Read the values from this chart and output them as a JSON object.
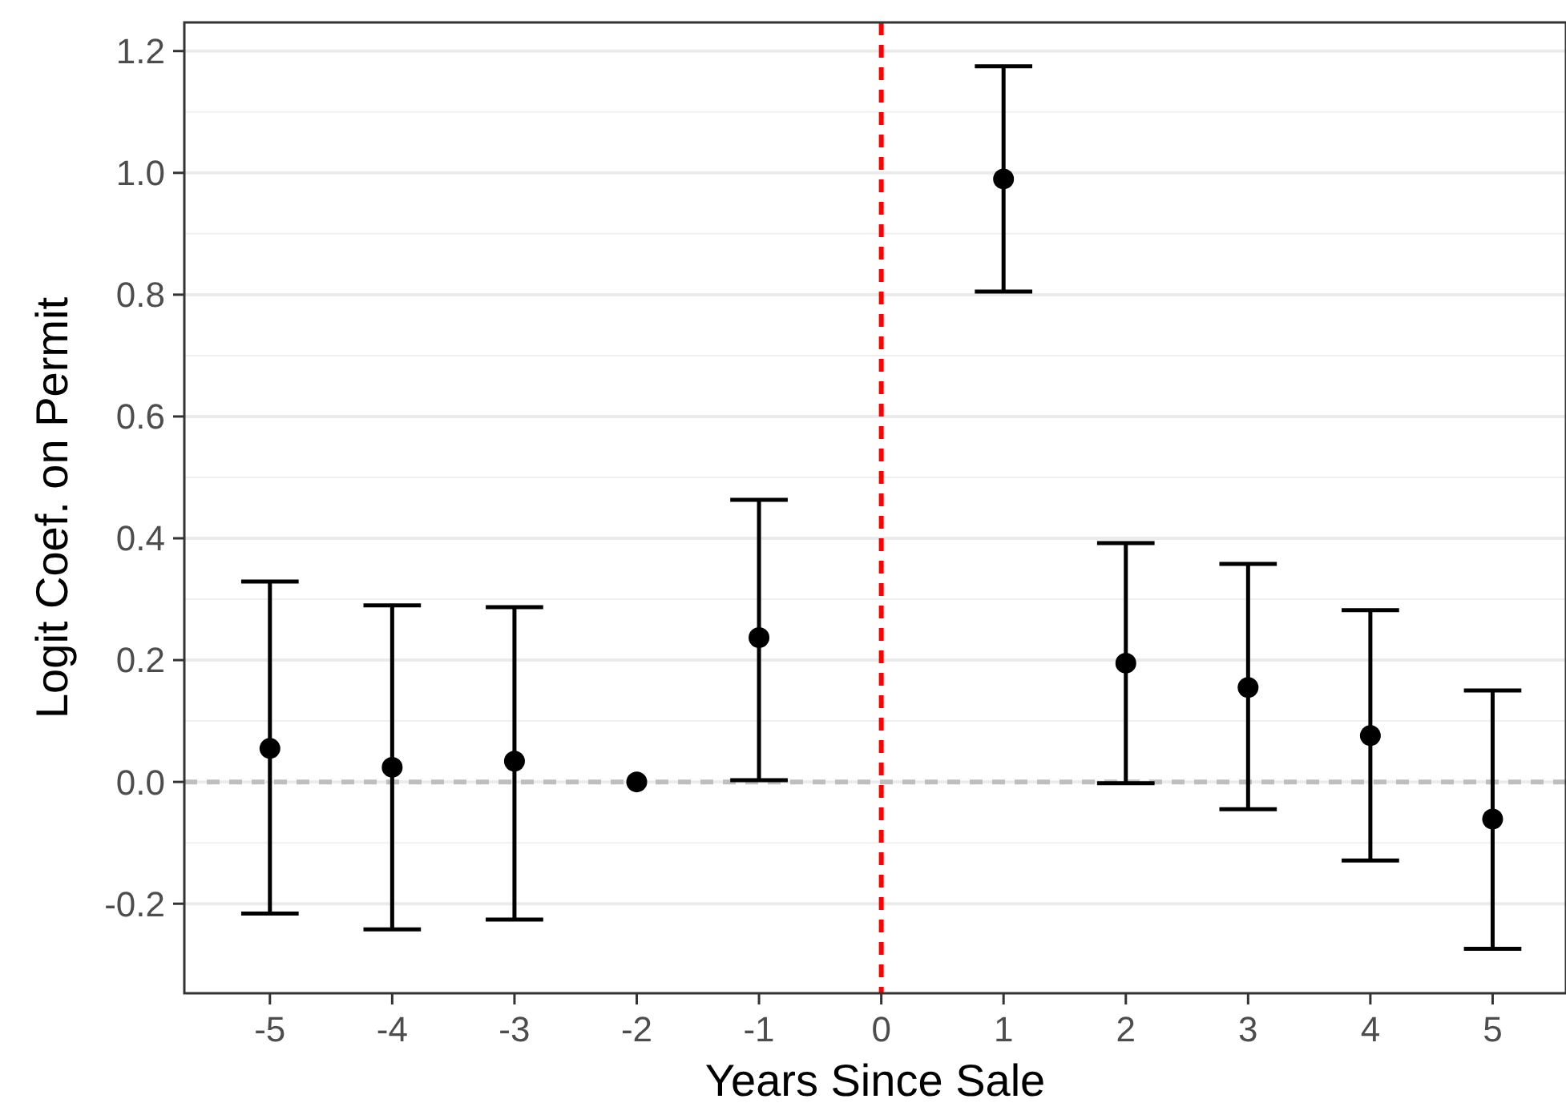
{
  "chart_data": {
    "type": "scatter",
    "xlabel": "Years Since Sale",
    "ylabel": "Logit Coef. on Permit",
    "x": [
      -5,
      -4,
      -3,
      -2,
      -1,
      1,
      2,
      3,
      4,
      5
    ],
    "values": [
      0.055,
      0.024,
      0.034,
      0,
      0.237,
      0.99,
      0.195,
      0.155,
      0.076,
      -0.061
    ],
    "errors": [
      [
        -0.216,
        0.329
      ],
      [
        -0.242,
        0.29
      ],
      [
        -0.226,
        0.287
      ],
      null,
      [
        0.003,
        0.463
      ],
      [
        0.805,
        1.175
      ],
      [
        -0.002,
        0.392
      ],
      [
        -0.045,
        0.358
      ],
      [
        -0.129,
        0.282
      ],
      [
        -0.274,
        0.15
      ]
    ],
    "color": "#000000",
    "marker": "circle",
    "xlim": [
      -5.7,
      5.6
    ],
    "xticks": [
      -5,
      -4,
      -3,
      -2,
      -1,
      0,
      1,
      2,
      3,
      4,
      5
    ],
    "ylim": [
      -0.347,
      1.247
    ],
    "yticks": [
      {
        "value": -0.2,
        "label": "-0.2"
      },
      {
        "value": 0,
        "label": "0.0"
      },
      {
        "value": 0.2,
        "label": "0.2"
      },
      {
        "value": 0.4,
        "label": "0.4"
      },
      {
        "value": 0.6,
        "label": "0.6"
      },
      {
        "value": 0.8,
        "label": "0.8"
      },
      {
        "value": 1,
        "label": "1.0"
      },
      {
        "value": 1.2,
        "label": "1.2"
      }
    ],
    "grid": "y",
    "ref_lines": [
      {
        "axis": "y",
        "value": 0,
        "color": "#bebebe",
        "line_style": "dashed"
      },
      {
        "axis": "x",
        "value": 0,
        "color": "#ff0000",
        "line_style": "dashed"
      }
    ]
  }
}
